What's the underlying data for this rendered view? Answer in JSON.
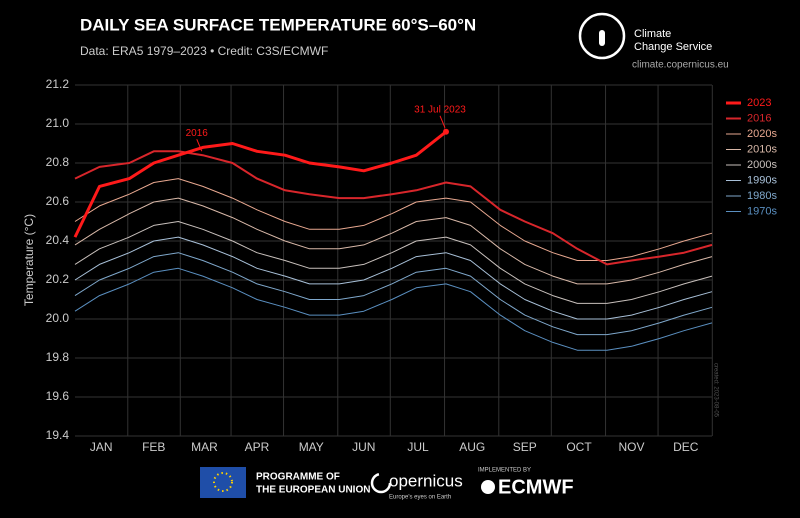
{
  "chart_data": {
    "type": "line",
    "title": "DAILY SEA SURFACE TEMPERATURE 60°S–60°N",
    "subtitle": "Data: ERA5 1979–2023 • Credit: C3S/ECMWF",
    "ylabel": "Temperature (°C)",
    "note": "created: 2023-08-05",
    "xlim": [
      1,
      365
    ],
    "ylim": [
      19.4,
      21.2
    ],
    "yticks": [
      19.4,
      19.6,
      19.8,
      {
        "value": 20,
        "label": "20.0"
      },
      20.2,
      20.4,
      20.6,
      20.8,
      {
        "value": 21,
        "label": "21.0"
      },
      21.2
    ],
    "xticks": [
      {
        "value": 16,
        "label": "JAN"
      },
      {
        "value": 46,
        "label": "FEB"
      },
      {
        "value": 75,
        "label": "MAR"
      },
      {
        "value": 105,
        "label": "APR"
      },
      {
        "value": 136,
        "label": "MAY"
      },
      {
        "value": 166,
        "label": "JUN"
      },
      {
        "value": 197,
        "label": "JUL"
      },
      {
        "value": 228,
        "label": "AUG"
      },
      {
        "value": 258,
        "label": "SEP"
      },
      {
        "value": 289,
        "label": "OCT"
      },
      {
        "value": 319,
        "label": "NOV"
      },
      {
        "value": 350,
        "label": "DEC"
      }
    ],
    "grid": true,
    "legend": "right",
    "x": [
      1,
      15,
      32,
      46,
      60,
      74,
      91,
      105,
      121,
      135,
      152,
      166,
      182,
      196,
      213,
      227,
      244,
      258,
      274,
      288,
      305,
      319,
      335,
      349,
      365
    ],
    "series": [
      {
        "name": "2023",
        "color": "#ff1a1a",
        "width": 3,
        "values": [
          20.42,
          20.68,
          20.72,
          20.8,
          20.84,
          20.88,
          20.9,
          20.86,
          20.84,
          20.8,
          20.78,
          20.76,
          20.8,
          20.84,
          20.96,
          null,
          null,
          null,
          null,
          null,
          null,
          null,
          null,
          null,
          null
        ]
      },
      {
        "name": "2016",
        "color": "#d8262b",
        "width": 2,
        "values": [
          20.72,
          20.78,
          20.8,
          20.86,
          20.86,
          20.84,
          20.8,
          20.72,
          20.66,
          20.64,
          20.62,
          20.62,
          20.64,
          20.66,
          20.7,
          20.68,
          20.56,
          20.5,
          20.44,
          20.36,
          20.28,
          20.3,
          20.32,
          20.34,
          20.38
        ]
      },
      {
        "name": "2020s",
        "color": "#e8a890",
        "width": 1,
        "values": [
          20.5,
          20.58,
          20.64,
          20.7,
          20.72,
          20.68,
          20.62,
          20.56,
          20.5,
          20.46,
          20.46,
          20.48,
          20.54,
          20.6,
          20.62,
          20.6,
          20.48,
          20.4,
          20.34,
          20.3,
          20.3,
          20.32,
          20.36,
          20.4,
          20.44
        ]
      },
      {
        "name": "2010s",
        "color": "#d8b8a8",
        "width": 1,
        "values": [
          20.38,
          20.46,
          20.54,
          20.6,
          20.62,
          20.58,
          20.52,
          20.46,
          20.4,
          20.36,
          20.36,
          20.38,
          20.44,
          20.5,
          20.52,
          20.48,
          20.36,
          20.28,
          20.22,
          20.18,
          20.18,
          20.2,
          20.24,
          20.28,
          20.32
        ]
      },
      {
        "name": "2000s",
        "color": "#c8c0bc",
        "width": 1,
        "values": [
          20.28,
          20.36,
          20.42,
          20.48,
          20.5,
          20.46,
          20.4,
          20.34,
          20.3,
          20.26,
          20.26,
          20.28,
          20.34,
          20.4,
          20.42,
          20.38,
          20.26,
          20.18,
          20.12,
          20.08,
          20.08,
          20.1,
          20.14,
          20.18,
          20.22
        ]
      },
      {
        "name": "1990s",
        "color": "#a8c0d8",
        "width": 1,
        "values": [
          20.2,
          20.28,
          20.34,
          20.4,
          20.42,
          20.38,
          20.32,
          20.26,
          20.22,
          20.18,
          20.18,
          20.2,
          20.26,
          20.32,
          20.34,
          20.3,
          20.18,
          20.1,
          20.04,
          20.0,
          20.0,
          20.02,
          20.06,
          20.1,
          20.14
        ]
      },
      {
        "name": "1980s",
        "color": "#7fa8cc",
        "width": 1,
        "values": [
          20.12,
          20.2,
          20.26,
          20.32,
          20.34,
          20.3,
          20.24,
          20.18,
          20.14,
          20.1,
          20.1,
          20.12,
          20.18,
          20.24,
          20.26,
          20.22,
          20.1,
          20.02,
          19.96,
          19.92,
          19.92,
          19.94,
          19.98,
          20.02,
          20.06
        ]
      },
      {
        "name": "1970s",
        "color": "#5a8fc0",
        "width": 1,
        "values": [
          20.04,
          20.12,
          20.18,
          20.24,
          20.26,
          20.22,
          20.16,
          20.1,
          20.06,
          20.02,
          20.02,
          20.04,
          20.1,
          20.16,
          20.18,
          20.14,
          20.02,
          19.94,
          19.88,
          19.84,
          19.84,
          19.86,
          19.9,
          19.94,
          19.98
        ]
      }
    ],
    "annotations": [
      {
        "text": "31 Jul 2023",
        "x": 213,
        "y": 20.96
      },
      {
        "text": "2016",
        "x": 74,
        "y": 20.84
      }
    ]
  },
  "branding": {
    "service": "Climate",
    "service2": "Change Service",
    "url": "climate.copernicus.eu",
    "eu": "PROGRAMME OF",
    "eu2": "THE EUROPEAN UNION",
    "copernicus": "opernicus",
    "copernicus_tag": "Europe's eyes on Earth",
    "implemented": "IMPLEMENTED BY",
    "ecmwf": "ECMWF"
  }
}
